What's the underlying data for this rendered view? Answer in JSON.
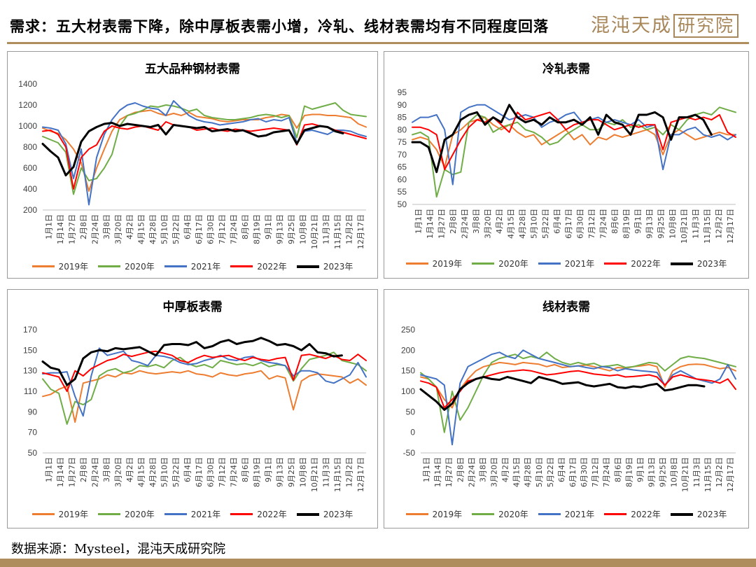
{
  "header": {
    "title": "需求：五大材表需下降，除中厚板表需小增，冷轧、线材表需均有不同程度回落",
    "logo_main": "混沌天成",
    "logo_boxed": "研究院"
  },
  "source": "数据来源：Mysteel，混沌天成研究院",
  "colors": {
    "2019年": "#ed7d31",
    "2020年": "#70ad47",
    "2021年": "#4472c4",
    "2022年": "#ff0000",
    "2023年": "#000000",
    "accent": "#b08d5c"
  },
  "chart_data": [
    {
      "type": "line",
      "title": "五大品种钢材表需",
      "x_tick_labels": [
        "1月1日",
        "1月14日",
        "1月27日",
        "2月8日",
        "2月24日",
        "3月8日",
        "3月20日",
        "4月2日",
        "4月15日",
        "4月28日",
        "5月10日",
        "5月22日",
        "6月4日",
        "6月17日",
        "6月30日",
        "7月12日",
        "7月24日",
        "8月6日",
        "8月19日",
        "9月1日",
        "9月13日",
        "9月25日",
        "10月8日",
        "10月21日",
        "11月3日",
        "11月15日",
        "12月2日",
        "12月17日"
      ],
      "ylim": [
        200,
        1400
      ],
      "yticks": [
        200,
        400,
        600,
        800,
        1000,
        1200,
        1400
      ],
      "legend": [
        "2019年",
        "2020年",
        "2021年",
        "2022年",
        "2023年"
      ],
      "series": [
        {
          "name": "2019年",
          "values": [
            980,
            950,
            930,
            870,
            780,
            650,
            380,
            600,
            780,
            950,
            1060,
            1100,
            1130,
            1140,
            1150,
            1120,
            1100,
            1120,
            1100,
            1130,
            1090,
            1080,
            1070,
            1050,
            1040,
            1050,
            1060,
            1060,
            1060,
            1080,
            1090,
            1110,
            1100,
            980,
            1100,
            1110,
            1110,
            1100,
            1100,
            1090,
            1080,
            1020,
            990
          ]
        },
        {
          "name": "2020年",
          "values": [
            900,
            870,
            840,
            750,
            350,
            600,
            480,
            500,
            600,
            730,
            1000,
            1100,
            1120,
            1150,
            1190,
            1180,
            1200,
            1190,
            1170,
            1140,
            1160,
            1100,
            1080,
            1070,
            1060,
            1060,
            1070,
            1080,
            1100,
            1110,
            1100,
            1080,
            1100,
            890,
            1190,
            1160,
            1180,
            1200,
            1220,
            1150,
            1110,
            1100,
            1090
          ]
        },
        {
          "name": "2021年",
          "values": [
            990,
            980,
            960,
            830,
            500,
            780,
            250,
            700,
            920,
            1060,
            1150,
            1200,
            1220,
            1190,
            1170,
            1160,
            1100,
            1240,
            1170,
            1100,
            1060,
            1040,
            1030,
            1010,
            1020,
            1030,
            1040,
            1060,
            1070,
            1040,
            1060,
            1050,
            1080,
            840,
            950,
            960,
            940,
            920,
            960,
            960,
            950,
            920,
            900
          ]
        },
        {
          "name": "2022年",
          "values": [
            950,
            960,
            920,
            800,
            400,
            700,
            780,
            820,
            950,
            1000,
            980,
            970,
            990,
            1000,
            980,
            960,
            1040,
            1010,
            1000,
            990,
            960,
            970,
            980,
            960,
            950,
            970,
            960,
            950,
            960,
            970,
            980,
            970,
            960,
            820,
            1010,
            1020,
            1000,
            990,
            960,
            940,
            920,
            900,
            880
          ]
        },
        {
          "name": "2023年",
          "values": [
            830,
            760,
            700,
            530,
            610,
            850,
            950,
            990,
            1020,
            1030,
            1000,
            1020,
            1010,
            1000,
            990,
            1010,
            920,
            1010,
            1000,
            990,
            980,
            990,
            950,
            960,
            970,
            950,
            960,
            930,
            900,
            910,
            940,
            950,
            960,
            830,
            960,
            980,
            1000,
            990,
            950,
            930
          ]
        }
      ]
    },
    {
      "type": "line",
      "title": "冷轧表需",
      "x_tick_labels": [
        "1月1日",
        "1月14日",
        "1月27日",
        "2月8日",
        "2月24日",
        "3月8日",
        "3月20日",
        "4月2日",
        "4月15日",
        "4月28日",
        "5月10日",
        "5月22日",
        "6月4日",
        "6月17日",
        "6月30日",
        "7月12日",
        "7月24日",
        "8月6日",
        "8月19日",
        "9月1日",
        "9月13日",
        "9月25日",
        "10月8日",
        "10月21日",
        "11月3日",
        "11月15日",
        "12月2日",
        "12月17日"
      ],
      "ylim": [
        50,
        95
      ],
      "yticks": [
        50,
        55,
        60,
        65,
        70,
        75,
        80,
        85,
        90,
        95
      ],
      "legend": [
        "2019年",
        "2020年",
        "2021年",
        "2022年",
        "2023年"
      ],
      "series": [
        {
          "name": "2019年",
          "values": [
            76,
            77,
            76,
            72,
            65,
            78,
            80,
            83,
            84,
            85,
            82,
            80,
            82,
            79,
            77,
            78,
            74,
            76,
            78,
            80,
            76,
            78,
            74,
            77,
            76,
            78,
            77,
            78,
            79,
            80,
            78,
            70,
            78,
            80,
            78,
            76,
            77,
            78,
            79,
            78,
            78
          ]
        },
        {
          "name": "2020年",
          "values": [
            78,
            79,
            77,
            53,
            64,
            62,
            63,
            83,
            86,
            85,
            79,
            81,
            82,
            83,
            80,
            79,
            77,
            74,
            75,
            78,
            80,
            82,
            80,
            80,
            83,
            82,
            84,
            81,
            82,
            80,
            81,
            78,
            82,
            80,
            84,
            86,
            87,
            86,
            89,
            88,
            87
          ]
        },
        {
          "name": "2021年",
          "values": [
            83,
            85,
            85,
            86,
            80,
            58,
            87,
            89,
            90,
            90,
            88,
            86,
            84,
            85,
            86,
            85,
            81,
            83,
            84,
            86,
            87,
            83,
            84,
            85,
            83,
            84,
            83,
            82,
            84,
            81,
            82,
            64,
            78,
            78,
            80,
            81,
            78,
            77,
            78,
            76,
            78
          ]
        },
        {
          "name": "2022年",
          "values": [
            81,
            81,
            80,
            78,
            64,
            70,
            76,
            81,
            84,
            83,
            85,
            82,
            79,
            87,
            84,
            85,
            86,
            87,
            84,
            80,
            82,
            83,
            84,
            84,
            82,
            80,
            81,
            82,
            81,
            82,
            82,
            72,
            83,
            84,
            85,
            84,
            85,
            84,
            86,
            79,
            77
          ]
        },
        {
          "name": "2023年",
          "values": [
            75,
            75,
            73,
            63,
            76,
            78,
            84,
            86,
            87,
            82,
            85,
            83,
            90,
            85,
            83,
            84,
            82,
            85,
            83,
            83,
            84,
            82,
            85,
            78,
            86,
            83,
            82,
            78,
            86,
            86,
            87,
            85,
            76,
            85,
            85,
            86,
            84,
            78
          ]
        }
      ]
    },
    {
      "type": "line",
      "title": "中厚板表需",
      "x_tick_labels": [
        "1月1日",
        "1月14日",
        "1月27日",
        "2月8日",
        "2月24日",
        "3月8日",
        "3月20日",
        "4月2日",
        "4月15日",
        "4月28日",
        "5月10日",
        "5月22日",
        "6月4日",
        "6月17日",
        "6月30日",
        "7月12日",
        "7月24日",
        "8月6日",
        "8月19日",
        "9月1日",
        "9月13日",
        "9月25日",
        "10月8日",
        "10月21日",
        "11月3日",
        "11月15日",
        "12月2日",
        "12月17日"
      ],
      "ylim": [
        50,
        170
      ],
      "yticks": [
        50,
        70,
        90,
        110,
        130,
        150,
        170
      ],
      "legend": [
        "2019年",
        "2020年",
        "2021年",
        "2022年",
        "2023年"
      ],
      "series": [
        {
          "name": "2019年",
          "values": [
            105,
            107,
            112,
            115,
            80,
            118,
            120,
            122,
            126,
            124,
            128,
            127,
            130,
            128,
            127,
            128,
            129,
            128,
            130,
            127,
            126,
            124,
            128,
            126,
            125,
            127,
            128,
            130,
            122,
            125,
            123,
            92,
            120,
            125,
            127,
            126,
            125,
            124,
            118,
            122,
            116
          ]
        },
        {
          "name": "2020年",
          "values": [
            122,
            112,
            108,
            78,
            100,
            97,
            102,
            125,
            130,
            132,
            128,
            130,
            135,
            134,
            136,
            133,
            140,
            143,
            137,
            134,
            136,
            133,
            140,
            138,
            136,
            137,
            135,
            138,
            134,
            136,
            135,
            120,
            132,
            141,
            143,
            145,
            148,
            140,
            138,
            136,
            130
          ]
        },
        {
          "name": "2021年",
          "values": [
            127,
            128,
            128,
            129,
            105,
            86,
            125,
            152,
            145,
            147,
            149,
            140,
            138,
            135,
            145,
            144,
            142,
            138,
            136,
            137,
            140,
            142,
            145,
            141,
            140,
            143,
            144,
            140,
            138,
            137,
            135,
            125,
            130,
            130,
            128,
            120,
            118,
            122,
            126,
            138,
            124
          ]
        },
        {
          "name": "2022年",
          "values": [
            128,
            126,
            124,
            110,
            130,
            125,
            132,
            136,
            140,
            142,
            146,
            144,
            146,
            148,
            149,
            147,
            145,
            140,
            138,
            142,
            145,
            143,
            144,
            145,
            142,
            140,
            143,
            141,
            140,
            142,
            143,
            121,
            145,
            146,
            144,
            142,
            145,
            141,
            140,
            146,
            140
          ]
        },
        {
          "name": "2023年",
          "values": [
            139,
            133,
            131,
            116,
            122,
            142,
            148,
            150,
            149,
            152,
            151,
            152,
            153,
            149,
            145,
            155,
            156,
            156,
            155,
            158,
            152,
            154,
            158,
            160,
            156,
            158,
            159,
            162,
            159,
            155,
            156,
            154,
            150,
            156,
            148,
            147,
            144,
            145
          ]
        }
      ]
    },
    {
      "type": "line",
      "title": "线材表需",
      "x_tick_labels": [
        "1月1日",
        "1月14日",
        "1月27日",
        "2月8日",
        "2月24日",
        "3月8日",
        "3月20日",
        "4月2日",
        "4月15日",
        "4月28日",
        "5月10日",
        "5月22日",
        "6月4日",
        "6月17日",
        "6月30日",
        "7月12日",
        "7月24日",
        "8月6日",
        "8月19日",
        "9月1日",
        "9月13日",
        "9月25日",
        "10月8日",
        "10月21日",
        "11月3日",
        "11月15日",
        "12月2日",
        "12月17日"
      ],
      "ylim": [
        -50,
        250
      ],
      "yticks": [
        -50,
        0,
        50,
        100,
        150,
        200,
        250
      ],
      "legend": [
        "2019年",
        "2020年",
        "2021年",
        "2022年",
        "2023年"
      ],
      "series": [
        {
          "name": "2019年",
          "values": [
            135,
            130,
            110,
            80,
            60,
            105,
            130,
            150,
            160,
            165,
            170,
            168,
            165,
            170,
            168,
            166,
            160,
            165,
            158,
            160,
            162,
            164,
            160,
            155,
            150,
            158,
            156,
            160,
            162,
            165,
            160,
            110,
            150,
            160,
            165,
            166,
            165,
            160,
            155,
            158,
            150
          ]
        },
        {
          "name": "2020年",
          "values": [
            145,
            130,
            110,
            0,
            100,
            30,
            60,
            100,
            140,
            170,
            180,
            185,
            190,
            180,
            185,
            180,
            195,
            180,
            170,
            165,
            170,
            165,
            168,
            160,
            162,
            165,
            158,
            160,
            165,
            170,
            168,
            150,
            165,
            180,
            185,
            182,
            180,
            175,
            170,
            165,
            160
          ]
        },
        {
          "name": "2021年",
          "values": [
            140,
            135,
            130,
            115,
            -30,
            120,
            160,
            170,
            180,
            190,
            195,
            185,
            180,
            200,
            190,
            180,
            175,
            170,
            165,
            160,
            162,
            158,
            155,
            160,
            158,
            150,
            155,
            152,
            150,
            148,
            146,
            115,
            140,
            150,
            140,
            130,
            125,
            120,
            130,
            165,
            130
          ]
        },
        {
          "name": "2022年",
          "values": [
            125,
            120,
            110,
            60,
            80,
            100,
            125,
            130,
            135,
            140,
            145,
            148,
            150,
            152,
            150,
            145,
            140,
            142,
            145,
            148,
            150,
            146,
            142,
            140,
            138,
            140,
            135,
            136,
            138,
            140,
            135,
            115,
            135,
            140,
            135,
            130,
            128,
            125,
            120,
            130,
            105
          ]
        },
        {
          "name": "2023年",
          "values": [
            105,
            90,
            75,
            55,
            70,
            105,
            120,
            130,
            135,
            130,
            128,
            135,
            130,
            125,
            120,
            135,
            130,
            125,
            118,
            120,
            122,
            115,
            112,
            115,
            118,
            110,
            108,
            112,
            110,
            115,
            118,
            102,
            105,
            110,
            115,
            115,
            112
          ]
        }
      ]
    }
  ]
}
